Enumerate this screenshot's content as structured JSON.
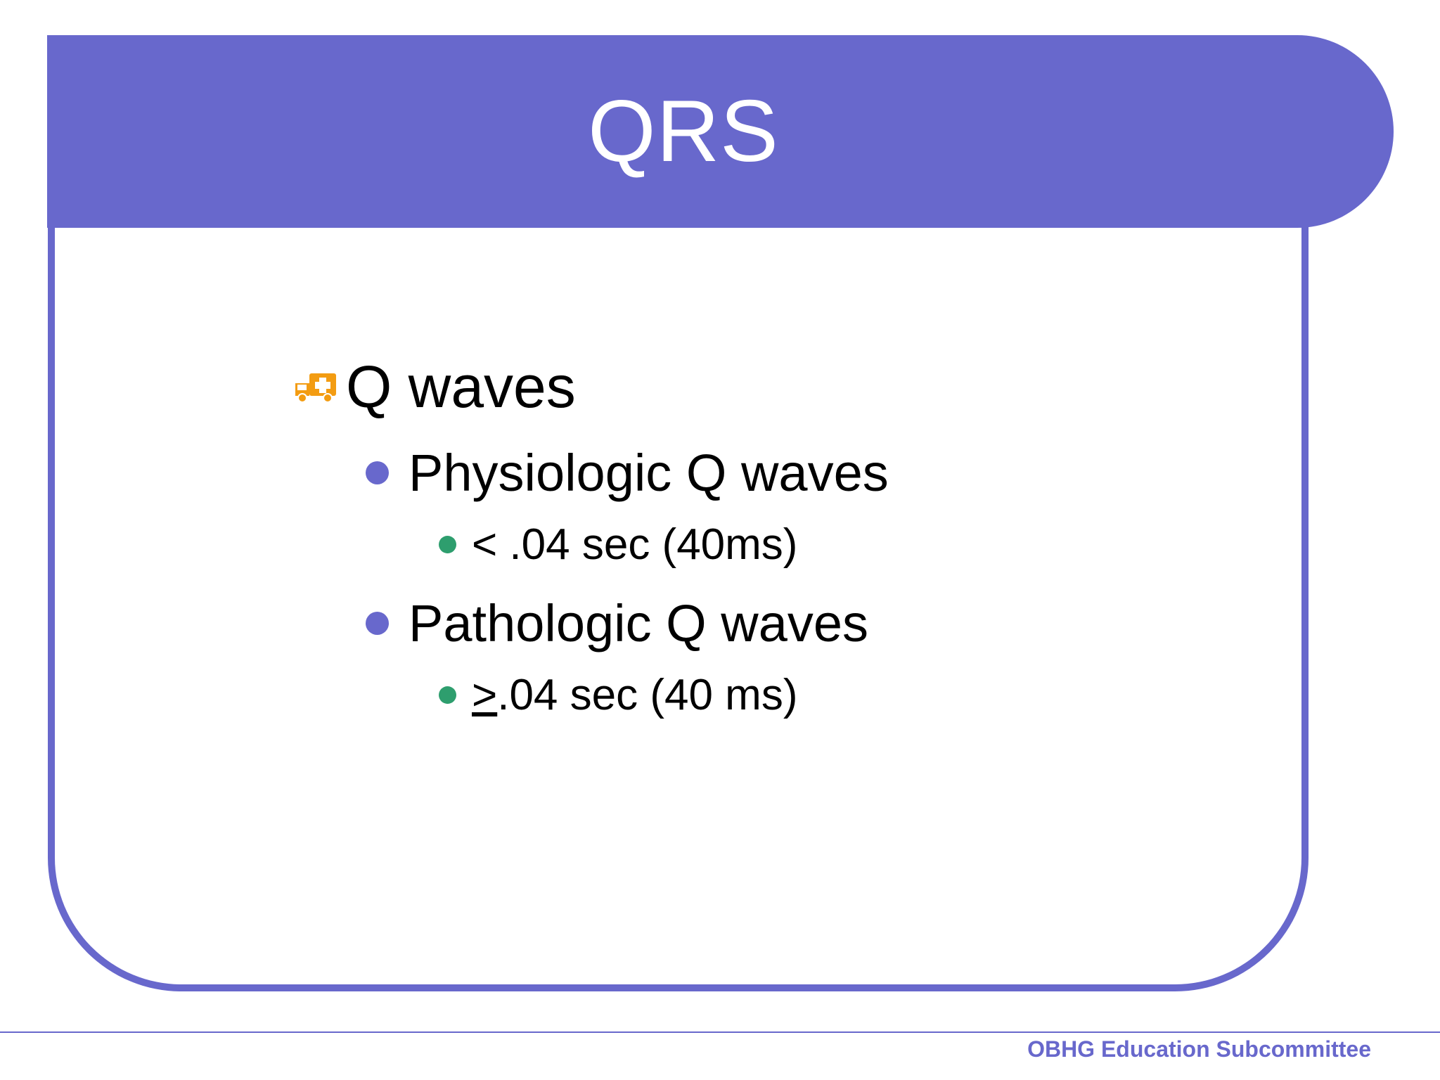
{
  "slide": {
    "title": "QRS"
  },
  "content": {
    "level1": {
      "text": "Q waves",
      "icon": "ambulance-icon"
    },
    "items": [
      {
        "text": "Physiologic Q waves",
        "sub": {
          "text": "< .04 sec (40ms)"
        }
      },
      {
        "text": "Pathologic Q waves",
        "sub": {
          "symbol": ">",
          "text": ".04 sec (40 ms)"
        }
      }
    ]
  },
  "footer": {
    "text": "OBHG Education Subcommittee"
  },
  "colors": {
    "accent": "#6868cc",
    "sub_bullet": "#2e9e6e",
    "icon": "#f39c12"
  }
}
